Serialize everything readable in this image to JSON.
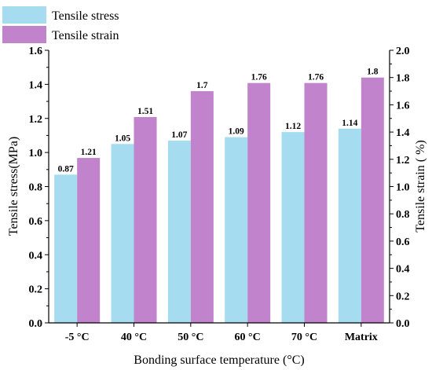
{
  "chart_data": {
    "type": "bar",
    "categories": [
      "-5 °C",
      "40 °C",
      "50 °C",
      "60 °C",
      "70 °C",
      "Matrix"
    ],
    "series": [
      {
        "name": "Tensile stress",
        "axis": "left",
        "color": "#a6dcf0",
        "values": [
          0.87,
          1.05,
          1.07,
          1.09,
          1.12,
          1.14
        ],
        "labels": [
          "0.87",
          "1.05",
          "1.07",
          "1.09",
          "1.12",
          "1.14"
        ]
      },
      {
        "name": "Tensile strain",
        "axis": "right",
        "color": "#c083cc",
        "values": [
          1.21,
          1.51,
          1.7,
          1.76,
          1.76,
          1.8
        ],
        "labels": [
          "1.21",
          "1.51",
          "1.7",
          "1.76",
          "1.76",
          "1.8"
        ]
      }
    ],
    "xlabel": "Bonding surface temperature (°C)",
    "ylabel": "Tensile stress(MPa)",
    "y2label": "Tensile strain ( %)",
    "ylim": [
      0,
      1.6
    ],
    "y2lim": [
      0,
      2.0
    ],
    "yticks": [
      "0.0",
      "0.2",
      "0.4",
      "0.6",
      "0.8",
      "1.0",
      "1.2",
      "1.4",
      "1.6"
    ],
    "y2ticks": [
      "0.0",
      "0.2",
      "0.4",
      "0.6",
      "0.8",
      "1.0",
      "1.2",
      "1.4",
      "1.6",
      "1.8",
      "2.0"
    ],
    "legend_position": "top-left",
    "grid": false
  }
}
